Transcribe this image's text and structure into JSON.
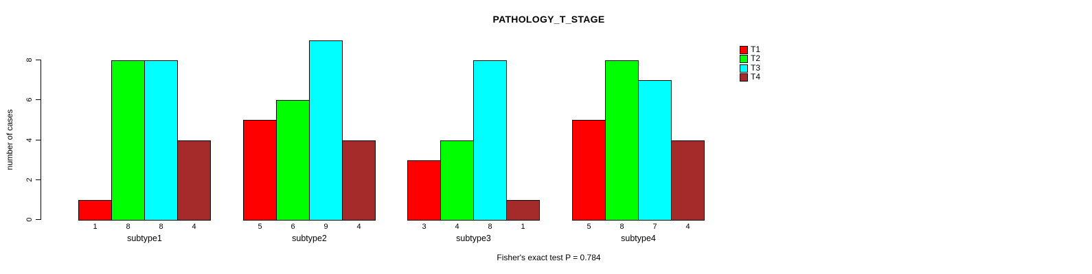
{
  "chart_data": {
    "type": "bar",
    "title": "PATHOLOGY_T_STAGE",
    "ylabel": "number of cases",
    "xlabel": "",
    "ylim": [
      0,
      9
    ],
    "yticks": [
      0,
      2,
      4,
      6,
      8
    ],
    "grid": false,
    "legend_position": "right",
    "show_values_under_bars": true,
    "categories": [
      "subtype1",
      "subtype2",
      "subtype3",
      "subtype4"
    ],
    "series": [
      {
        "name": "T1",
        "color": "#FF0000",
        "values": [
          1,
          5,
          3,
          5
        ]
      },
      {
        "name": "T2",
        "color": "#00FF00",
        "values": [
          8,
          6,
          4,
          8
        ]
      },
      {
        "name": "T3",
        "color": "#00FFFF",
        "values": [
          8,
          9,
          8,
          7
        ]
      },
      {
        "name": "T4",
        "color": "#A52A2A",
        "values": [
          4,
          4,
          1,
          4
        ]
      }
    ],
    "footnote": "Fisher's exact test P = 0.784",
    "axis_color": "#000000",
    "text_color": "#000000",
    "background_color": "#FFFFFF"
  }
}
